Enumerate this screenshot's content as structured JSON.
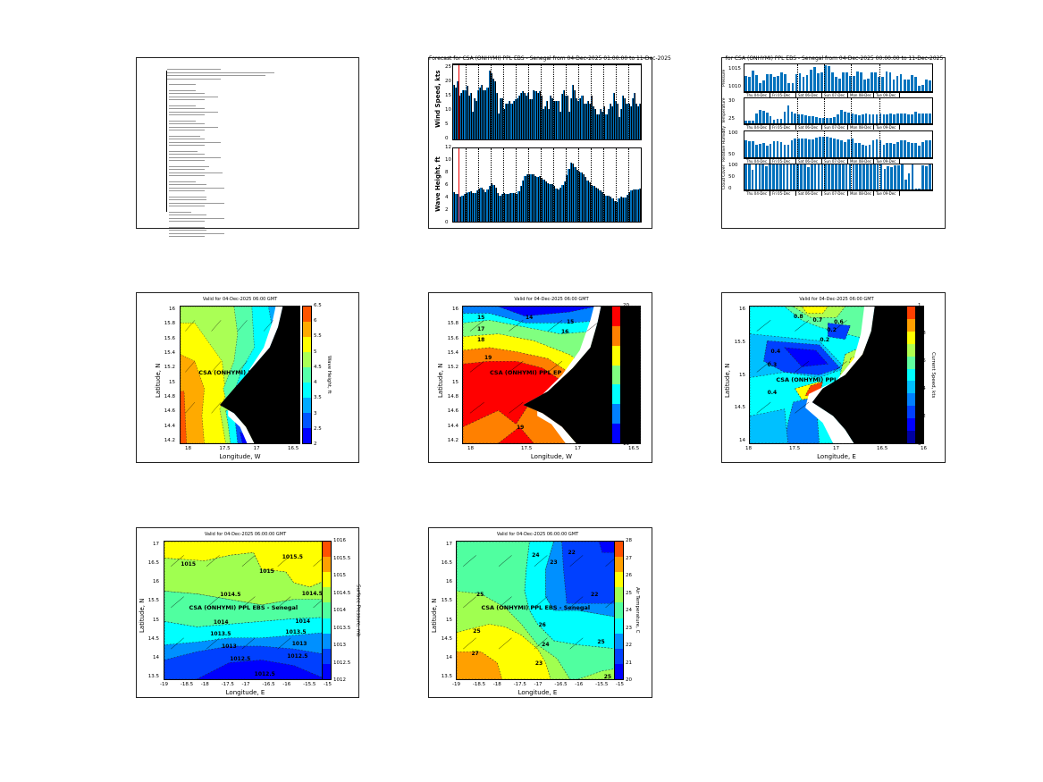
{
  "panels": {
    "forecast_bars": {
      "title": "Forecast for CSA (ONHYMI) PPL EBS - Senegal from 04-Dec-2025 01:00:00 to 11-Dec-2025",
      "wind_label": "Wind Speed, kts",
      "wave_label": "Wave Height, ft",
      "wind_ticks": [
        "25",
        "20",
        "15",
        "10",
        "5",
        "0"
      ],
      "wave_ticks": [
        "12",
        "10",
        "8",
        "6",
        "4",
        "2",
        "0"
      ]
    },
    "met_bars": {
      "title": "for CSA (ONHYMI) PPL EBS - Senegal from 04-Dec-2025 00:00:00 to 11-Dec-2025",
      "days": [
        "Thu 04-Dec",
        "Fri 05-Dec",
        "Sat 06-Dec",
        "Sun 07-Dec",
        "Mon 08-Dec",
        "Tue 09-Dec"
      ],
      "p_ticks": [
        "1015",
        "1010"
      ],
      "t_ticks": [
        "30",
        "25"
      ],
      "rh_ticks": [
        "100",
        "50"
      ],
      "cc_ticks": [
        "100",
        "50",
        "0"
      ]
    },
    "wave_map": {
      "title": "Valid for 04-Dec-2025 06:00 GMT",
      "ylabel": "Latitude, N",
      "xlabel": "Longitude, W",
      "cblabel": "Wave Height, ft",
      "site": "CSA (ONHYMI) PPL E",
      "yticks": [
        "16",
        "15.8",
        "15.6",
        "15.4",
        "15.2",
        "15",
        "14.8",
        "14.6",
        "14.4",
        "14.2"
      ],
      "xticks": [
        "18",
        "17.5",
        "17",
        "16.5"
      ],
      "cbticks": [
        "6.5",
        "6",
        "5.5",
        "5",
        "4.5",
        "4",
        "3.5",
        "3",
        "2.5",
        "2"
      ],
      "colors": [
        "#0000ff",
        "#0055ff",
        "#00aaff",
        "#00ffff",
        "#55ffaa",
        "#aaff55",
        "#ffff00",
        "#ffaa00",
        "#ff5500"
      ]
    },
    "wind_map": {
      "title": "Valid for 04-Dec-2025 06:00 GMT",
      "ylabel": "Latitude, N",
      "xlabel": "Longitude, W",
      "cblabel": "Wind Speed, kts",
      "site": "CSA (ONHYMI) PPL EP",
      "yticks": [
        "16",
        "15.8",
        "15.6",
        "15.4",
        "15.2",
        "15",
        "14.8",
        "14.6",
        "14.4",
        "14.2"
      ],
      "xticks": [
        "18",
        "17.5",
        "17",
        "16.5"
      ],
      "cbticks": [
        "20",
        "19",
        "18",
        "17",
        "16",
        "15",
        "14",
        "13"
      ],
      "colors": [
        "#0000ff",
        "#0080ff",
        "#00ffff",
        "#80ff80",
        "#ffff00",
        "#ff8000",
        "#ff0000"
      ],
      "contours": [
        "15",
        "14",
        "15",
        "16",
        "17",
        "18",
        "19",
        "19"
      ]
    },
    "current_map": {
      "title": "Valid for 04-Dec-2025 06:00 GMT",
      "ylabel": "Latitude, N",
      "xlabel": "Longitude, E",
      "cblabel": "Current Speed, kts",
      "site": "CSA (ONHYMI) PPL E",
      "yticks": [
        "16",
        "15.5",
        "15",
        "14.5",
        "14"
      ],
      "xticks": [
        "18",
        "17.5",
        "17",
        "16.5",
        "16"
      ],
      "cbticks": [
        "1",
        "0.8",
        "0.6",
        "0.4",
        "0.2",
        "0"
      ],
      "colors": [
        "#0000a0",
        "#0000ff",
        "#0040ff",
        "#0080ff",
        "#00c0ff",
        "#00ffff",
        "#60ffa0",
        "#b0ff50",
        "#ffff00",
        "#ffa000",
        "#ff4000"
      ],
      "contours": [
        "0.8",
        "0.7",
        "0.6",
        "0.2",
        "0.2",
        "0.3",
        "0.4",
        "0.4"
      ]
    },
    "pressure_map": {
      "title": "Valid for 04-Dec-2025 06:00:00 GMT",
      "ylabel": "Latitude, N",
      "xlabel": "Longitude, E",
      "cblabel": "Surface Pressure, mb",
      "site": "CSA (ONHYMI) PPL EBS - Senegal",
      "yticks": [
        "17",
        "16.5",
        "16",
        "15.5",
        "15",
        "14.5",
        "14",
        "13.5"
      ],
      "xticks": [
        "-19",
        "-18.5",
        "-18",
        "-17.5",
        "-17",
        "-16.5",
        "-16",
        "-15.5",
        "-15"
      ],
      "cbticks": [
        "1016",
        "1015.5",
        "1015",
        "1014.5",
        "1014",
        "1013.5",
        "1013",
        "1012.5",
        "1012"
      ],
      "colors": [
        "#0000ff",
        "#0040ff",
        "#0090ff",
        "#00ffff",
        "#50ffa0",
        "#a0ff50",
        "#ffff00",
        "#ffa000",
        "#ff5000"
      ],
      "contours": [
        "1015",
        "1015.5",
        "1015",
        "1014.5",
        "1014.5",
        "1014",
        "1014",
        "1013.5",
        "1013.5",
        "1013",
        "1013",
        "1012.5",
        "1012.5",
        "1012.5"
      ]
    },
    "temp_map": {
      "title": "Valid for 04-Dec-2025 06:00:00 GMT",
      "ylabel": "Latitude, N",
      "xlabel": "Longitude, E",
      "cblabel": "Air Temperature, C",
      "site": "CSA (ONHYMI) PPL EBS  - Senegal",
      "yticks": [
        "17",
        "16.5",
        "16",
        "15.5",
        "15",
        "14.5",
        "14",
        "13.5"
      ],
      "xticks": [
        "-19",
        "-18.5",
        "-18",
        "-17.5",
        "-17",
        "-16.5",
        "-16",
        "-15.5",
        "-15"
      ],
      "cbticks": [
        "28",
        "27",
        "26",
        "25",
        "24",
        "23",
        "22",
        "21",
        "20"
      ],
      "colors": [
        "#0000ff",
        "#0040ff",
        "#0090ff",
        "#00ffff",
        "#50ffa0",
        "#a0ff50",
        "#ffff00",
        "#ffa000",
        "#ff5000"
      ],
      "contours": [
        "24",
        "23",
        "22",
        "22",
        "25",
        "25",
        "26",
        "27",
        "23",
        "24",
        "25",
        "25"
      ]
    }
  },
  "chart_data": [
    {
      "type": "bar",
      "title": "Wind Speed",
      "ylabel": "Wind Speed, kts",
      "ylim": [
        0,
        27
      ],
      "values": [
        20,
        19,
        21,
        16,
        17,
        18,
        18,
        19.5,
        16,
        17,
        10,
        15,
        14,
        18,
        19,
        20,
        18,
        18,
        19,
        25,
        24,
        22,
        21,
        17,
        9.5,
        15,
        15,
        11,
        13,
        13,
        14,
        13,
        14,
        14.5,
        15,
        16,
        17,
        17.5,
        17,
        16,
        17,
        14.5,
        14.5,
        18,
        17.5,
        17,
        17.5,
        16,
        11,
        12,
        14,
        11,
        16,
        15,
        14,
        14,
        14,
        10,
        16.5,
        18,
        16,
        16,
        10,
        15,
        20,
        18,
        15,
        14,
        15,
        16,
        13,
        13,
        14,
        13,
        16,
        12,
        11,
        9,
        9,
        11,
        10,
        12,
        9,
        11,
        13,
        12,
        17,
        14,
        13,
        8,
        11,
        16,
        15,
        13,
        13,
        12,
        15,
        17,
        13,
        12,
        13
      ]
    },
    {
      "type": "bar",
      "title": "Wave Height",
      "ylabel": "Wave Height, ft",
      "ylim": [
        0,
        12
      ],
      "values": [
        4.9,
        4.6,
        4.6,
        4.1,
        4.3,
        4.6,
        4.7,
        4.8,
        5,
        4.7,
        4.7,
        5.1,
        5.4,
        5.6,
        5.3,
        4.9,
        5.3,
        5.9,
        6.3,
        6,
        5.5,
        4.7,
        4.3,
        4.5,
        4.7,
        4.6,
        4.6,
        4.7,
        4.7,
        4.7,
        4.6,
        5,
        5.8,
        6.7,
        7.4,
        7.8,
        7.8,
        7.8,
        7.8,
        7.5,
        7.3,
        7.5,
        7.2,
        6.9,
        6.6,
        6.3,
        6.2,
        6.1,
        5.8,
        5.4,
        5.3,
        5.6,
        6,
        6.6,
        7.6,
        8.6,
        9.6,
        9.5,
        9,
        8.5,
        8.2,
        8,
        7.7,
        7.3,
        6.8,
        6.4,
        6,
        5.8,
        5.6,
        5.4,
        5.1,
        4.8,
        4.5,
        4.3,
        4.2,
        4.1,
        3.8,
        3.4,
        3.2,
        3.8,
        4.1,
        4,
        4,
        4.4,
        4.8,
        5.1,
        5.3,
        5.2,
        5.2,
        5.4
      ]
    },
    {
      "type": "bar",
      "title": "Pressure",
      "ylim": [
        1009,
        1017
      ],
      "values": [
        1013.5,
        1013.3,
        1015.2,
        1013.9,
        1011.5,
        1012.3,
        1014.2,
        1014.2,
        1013.2,
        1013.5,
        1014.6,
        1014.2,
        1011.3,
        1011.5,
        1014.2,
        1014.3,
        1013.2,
        1013.9,
        1015.3,
        1016.1,
        1014.3,
        1014.6,
        1016.8,
        1016.6,
        1014.6,
        1013.2,
        1012.8,
        1014.6,
        1014.6,
        1013.5,
        1013.6,
        1014.8,
        1014.6,
        1012.6,
        1012.8,
        1014.6,
        1014.6,
        1013.4,
        1013.4,
        1014.8,
        1014.6,
        1012.6,
        1013.6,
        1014,
        1012.6,
        1012.6,
        1013.8,
        1013.3,
        1010.7,
        1011,
        1012.5,
        1012.3
      ]
    },
    {
      "type": "bar",
      "title": "Temperature",
      "ylim": [
        22,
        32
      ],
      "values": [
        23.2,
        23.2,
        23.2,
        25.8,
        27.3,
        27.1,
        26.3,
        25,
        23.5,
        23.7,
        23.9,
        26.5,
        29.1,
        26.6,
        26.1,
        25.6,
        25.6,
        25.1,
        24.9,
        24.9,
        24.6,
        24.3,
        24.1,
        24.1,
        24.3,
        24.6,
        25.6,
        27.2,
        26.6,
        26.4,
        25.8,
        25.6,
        25.2,
        25.6,
        25.8,
        25.6,
        25.6,
        25.6,
        25.8,
        25.6,
        25.6,
        25.8,
        25.6,
        26,
        26.1,
        26.1,
        25.6,
        25.5,
        26.6,
        25.9,
        25.9,
        26.1,
        25.9
      ]
    },
    {
      "type": "bar",
      "title": "Relative Humidity",
      "ylim": [
        0,
        100
      ],
      "values": [
        66,
        63,
        63,
        48,
        52,
        54,
        45,
        53,
        62,
        62,
        60,
        47,
        47,
        64,
        74,
        74,
        72,
        74,
        68,
        68,
        76,
        78,
        78,
        80,
        76,
        72,
        70,
        64,
        60,
        68,
        74,
        56,
        54,
        49,
        45,
        50,
        64,
        68,
        66,
        50,
        54,
        54,
        52,
        60,
        66,
        66,
        58,
        56,
        56,
        44,
        60,
        66,
        66
      ]
    },
    {
      "type": "bar",
      "title": "Cloud Cover",
      "ylim": [
        0,
        100
      ],
      "values": [
        100,
        100,
        80,
        100,
        100,
        100,
        92,
        100,
        100,
        100,
        100,
        100,
        100,
        100,
        100,
        100,
        100,
        100,
        88,
        100,
        100,
        100,
        100,
        100,
        100,
        100,
        100,
        100,
        100,
        100,
        100,
        100,
        100,
        100,
        100,
        100,
        100,
        100,
        100,
        100,
        82,
        92,
        90,
        96,
        96,
        100,
        38,
        64,
        100,
        2,
        2,
        96,
        94,
        100
      ]
    }
  ]
}
